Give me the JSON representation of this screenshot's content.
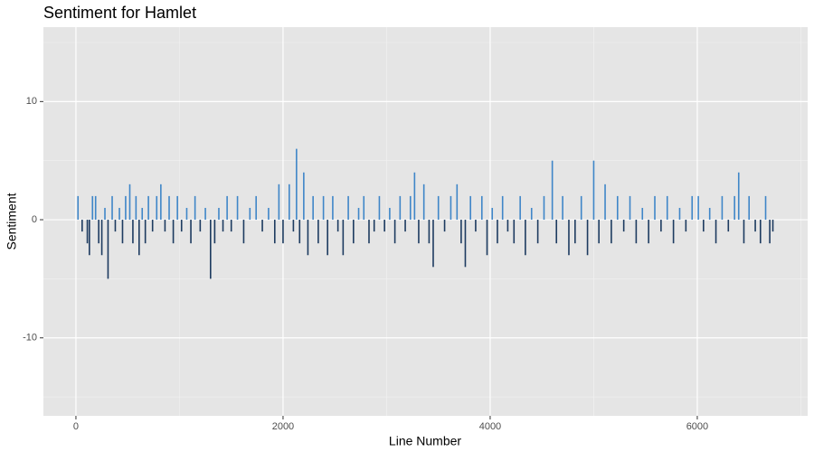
{
  "chart_data": {
    "type": "bar",
    "title": "Sentiment for Hamlet",
    "x_label": "Line Number",
    "y_label": "Sentiment",
    "xlim": [
      -314,
      7066
    ],
    "ylim": [
      -16.6,
      16.3
    ],
    "xticks": [
      0,
      2000,
      4000,
      6000
    ],
    "yticks": [
      -10,
      0,
      10
    ],
    "x_minor_grid": [
      1000,
      3000,
      5000,
      7000
    ],
    "y_minor_grid": [
      -15,
      -5,
      5,
      15
    ],
    "grid": true,
    "color_positive": "#3f86c8",
    "color_negative": "#1d3b60",
    "panel_color": "#e5e5e5",
    "x": [
      20,
      60,
      110,
      130,
      160,
      190,
      220,
      250,
      280,
      310,
      350,
      380,
      420,
      450,
      480,
      520,
      550,
      580,
      610,
      640,
      670,
      700,
      740,
      780,
      820,
      860,
      900,
      940,
      980,
      1020,
      1070,
      1110,
      1150,
      1200,
      1250,
      1300,
      1340,
      1380,
      1420,
      1460,
      1500,
      1560,
      1620,
      1680,
      1740,
      1800,
      1860,
      1920,
      1960,
      2000,
      2060,
      2100,
      2130,
      2160,
      2200,
      2240,
      2290,
      2340,
      2390,
      2430,
      2480,
      2530,
      2580,
      2630,
      2680,
      2730,
      2780,
      2830,
      2880,
      2930,
      2980,
      3030,
      3080,
      3130,
      3180,
      3230,
      3270,
      3310,
      3360,
      3410,
      3450,
      3500,
      3560,
      3620,
      3680,
      3720,
      3760,
      3810,
      3860,
      3920,
      3970,
      4020,
      4070,
      4120,
      4170,
      4230,
      4290,
      4340,
      4400,
      4460,
      4520,
      4600,
      4640,
      4700,
      4760,
      4820,
      4880,
      4940,
      5000,
      5050,
      5110,
      5170,
      5230,
      5290,
      5350,
      5410,
      5470,
      5530,
      5590,
      5650,
      5710,
      5770,
      5830,
      5890,
      5950,
      6010,
      6060,
      6120,
      6180,
      6240,
      6300,
      6360,
      6400,
      6450,
      6500,
      6560,
      6610,
      6660,
      6700,
      6730
    ],
    "values": [
      2,
      -1,
      -2,
      -3,
      2,
      2,
      -2,
      -3,
      1,
      -5,
      2,
      -1,
      1,
      -2,
      2,
      3,
      -2,
      2,
      -3,
      1,
      -2,
      2,
      -1,
      2,
      3,
      -1,
      2,
      -2,
      2,
      -1,
      1,
      -2,
      2,
      -1,
      1,
      -5,
      -2,
      1,
      -1,
      2,
      -1,
      2,
      -2,
      1,
      2,
      -1,
      1,
      -2,
      3,
      -2,
      3,
      -1,
      6,
      -2,
      4,
      -3,
      2,
      -2,
      2,
      -3,
      2,
      -1,
      -3,
      2,
      -2,
      1,
      2,
      -2,
      -1,
      2,
      -1,
      1,
      -2,
      2,
      -1,
      2,
      4,
      -2,
      3,
      -2,
      -4,
      2,
      -1,
      2,
      3,
      -2,
      -4,
      2,
      -1,
      2,
      -3,
      1,
      -2,
      2,
      -1,
      -2,
      2,
      -3,
      1,
      -2,
      2,
      5,
      -2,
      2,
      -3,
      -2,
      2,
      -3,
      5,
      -2,
      3,
      -2,
      2,
      -1,
      2,
      -2,
      1,
      -2,
      2,
      -1,
      2,
      -2,
      1,
      -1,
      2,
      2,
      -1,
      1,
      -2,
      2,
      -1,
      2,
      4,
      -2,
      2,
      -1,
      -2,
      2,
      -2,
      -1
    ]
  }
}
